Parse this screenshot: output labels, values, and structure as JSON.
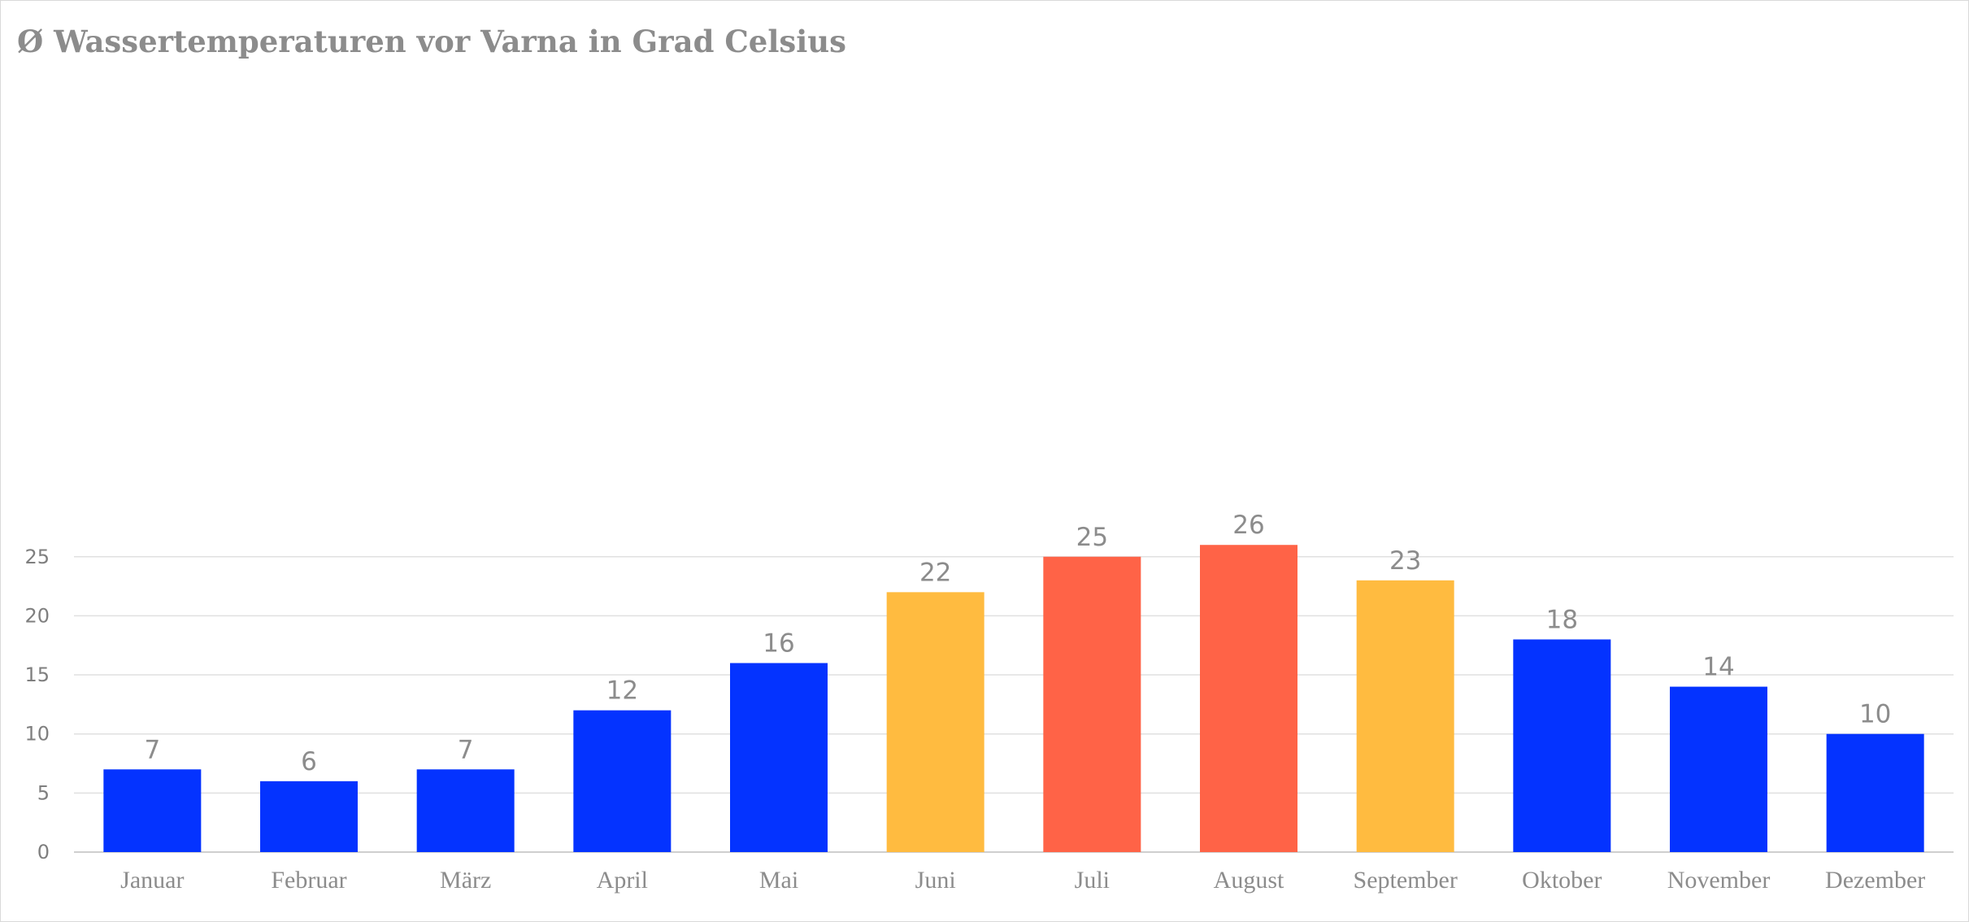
{
  "chart_data": {
    "type": "bar",
    "title": "Ø Wassertemperaturen vor Varna in Grad Celsius",
    "xlabel": "",
    "ylabel": "",
    "categories": [
      "Januar",
      "Februar",
      "März",
      "April",
      "Mai",
      "Juni",
      "Juli",
      "August",
      "September",
      "Oktober",
      "November",
      "Dezember"
    ],
    "values": [
      7,
      6,
      7,
      12,
      16,
      22,
      25,
      26,
      23,
      18,
      14,
      10
    ],
    "bar_colors": [
      "#0433ff",
      "#0433ff",
      "#0433ff",
      "#0433ff",
      "#0433ff",
      "#ffbb40",
      "#ff6347",
      "#ff6347",
      "#ffbb40",
      "#0433ff",
      "#0433ff",
      "#0433ff"
    ],
    "ylim": [
      0,
      30
    ],
    "yticks": [
      0,
      5,
      10,
      15,
      20,
      25
    ],
    "grid": true,
    "legend": "none",
    "data_labels": true
  }
}
